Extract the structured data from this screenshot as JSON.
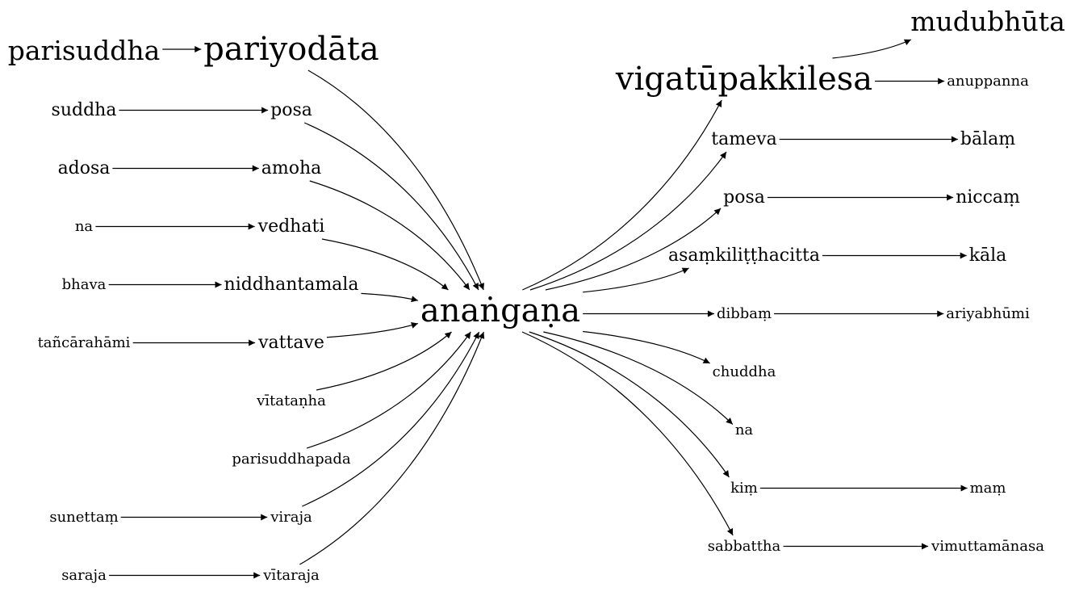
{
  "graph": {
    "center": "anaṅgaṇa",
    "nodes": {
      "parisuddha": "parisuddha",
      "pariyodata": "pariyodāta",
      "suddha": "suddha",
      "posa_left": "posa",
      "adosa": "adosa",
      "amoha": "amoha",
      "na_left": "na",
      "vedhati": "vedhati",
      "bhava": "bhava",
      "niddhantamala": "niddhantamala",
      "tancarahami": "tañcārahāmi",
      "vattave": "vattave",
      "vitatanha": "vītataṇha",
      "parisuddhapada": "parisuddhapada",
      "sunettam": "sunettaṃ",
      "viraja": "viraja",
      "saraja": "saraja",
      "vitaraja": "vītaraja",
      "center": "anaṅgaṇa",
      "vigatupakkilesa": "vigatūpakkilesa",
      "mudubhuta": "mudubhūta",
      "anuppanna": "anuppanna",
      "tameva": "tameva",
      "balam": "bālaṃ",
      "posa_right": "posa",
      "niccam": "niccaṃ",
      "asamkilitthacitta": "asaṃkiliṭṭhacitta",
      "kala": "kāla",
      "dibbam": "dibbaṃ",
      "ariyabhumi": "ariyabhūmi",
      "chuddha": "chuddha",
      "na_right": "na",
      "kim": "kiṃ",
      "mam": "maṃ",
      "sabbattha": "sabbattha",
      "vimuttamanasa": "vimuttamānasa"
    },
    "edges": [
      [
        "parisuddha",
        "pariyodata"
      ],
      [
        "suddha",
        "posa_left"
      ],
      [
        "adosa",
        "amoha"
      ],
      [
        "na_left",
        "vedhati"
      ],
      [
        "bhava",
        "niddhantamala"
      ],
      [
        "tancarahami",
        "vattave"
      ],
      [
        "sunettam",
        "viraja"
      ],
      [
        "saraja",
        "vitaraja"
      ],
      [
        "pariyodata",
        "center"
      ],
      [
        "posa_left",
        "center"
      ],
      [
        "amoha",
        "center"
      ],
      [
        "vedhati",
        "center"
      ],
      [
        "niddhantamala",
        "center"
      ],
      [
        "vattave",
        "center"
      ],
      [
        "vitatanha",
        "center"
      ],
      [
        "parisuddhapada",
        "center"
      ],
      [
        "viraja",
        "center"
      ],
      [
        "vitaraja",
        "center"
      ],
      [
        "center",
        "vigatupakkilesa"
      ],
      [
        "center",
        "tameva"
      ],
      [
        "center",
        "posa_right"
      ],
      [
        "center",
        "asamkilitthacitta"
      ],
      [
        "center",
        "dibbam"
      ],
      [
        "center",
        "chuddha"
      ],
      [
        "center",
        "na_right"
      ],
      [
        "center",
        "kim"
      ],
      [
        "center",
        "sabbattha"
      ],
      [
        "vigatupakkilesa",
        "mudubhuta"
      ],
      [
        "vigatupakkilesa",
        "anuppanna"
      ],
      [
        "tameva",
        "balam"
      ],
      [
        "posa_right",
        "niccam"
      ],
      [
        "asamkilitthacitta",
        "kala"
      ],
      [
        "dibbam",
        "ariyabhumi"
      ],
      [
        "kim",
        "mam"
      ],
      [
        "sabbattha",
        "vimuttamanasa"
      ]
    ]
  }
}
